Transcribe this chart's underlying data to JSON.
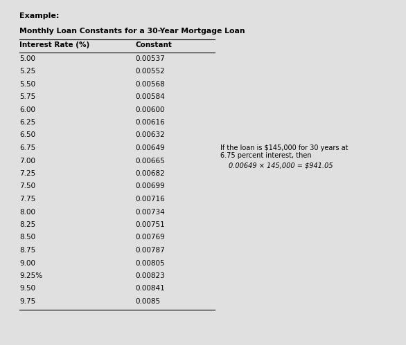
{
  "example_label": "Example:",
  "title": "Monthly Loan Constants for a 30-Year Mortgage Loan",
  "col1_header": "Interest Rate (%)",
  "col2_header": "Constant",
  "rows": [
    [
      "5.00",
      "0.00537"
    ],
    [
      "5.25",
      "0.00552"
    ],
    [
      "5.50",
      "0.00568"
    ],
    [
      "5.75",
      "0.00584"
    ],
    [
      "6.00",
      "0.00600"
    ],
    [
      "6.25",
      "0.00616"
    ],
    [
      "6.50",
      "0.00632"
    ],
    [
      "6.75",
      "0.00649"
    ],
    [
      "7.00",
      "0.00665"
    ],
    [
      "7.25",
      "0.00682"
    ],
    [
      "7.50",
      "0.00699"
    ],
    [
      "7.75",
      "0.00716"
    ],
    [
      "8.00",
      "0.00734"
    ],
    [
      "8.25",
      "0.00751"
    ],
    [
      "8.50",
      "0.00769"
    ],
    [
      "8.75",
      "0.00787"
    ],
    [
      "9.00",
      "0.00805"
    ],
    [
      "9.25%",
      "0.00823"
    ],
    [
      "9.50",
      "0.00841"
    ],
    [
      "9.75",
      "0.0085"
    ]
  ],
  "annotation_line1": "If the loan is $145,000 for 30 years at",
  "annotation_line2": "6.75 percent interest, then",
  "annotation_formula": "0.00649 × 145,000 = $941.05",
  "bg_color": "#e0e0e0",
  "text_color": "#000000",
  "font_size": 7.5,
  "header_font_size": 7.5,
  "title_font_size": 7.8,
  "example_font_size": 8.0
}
